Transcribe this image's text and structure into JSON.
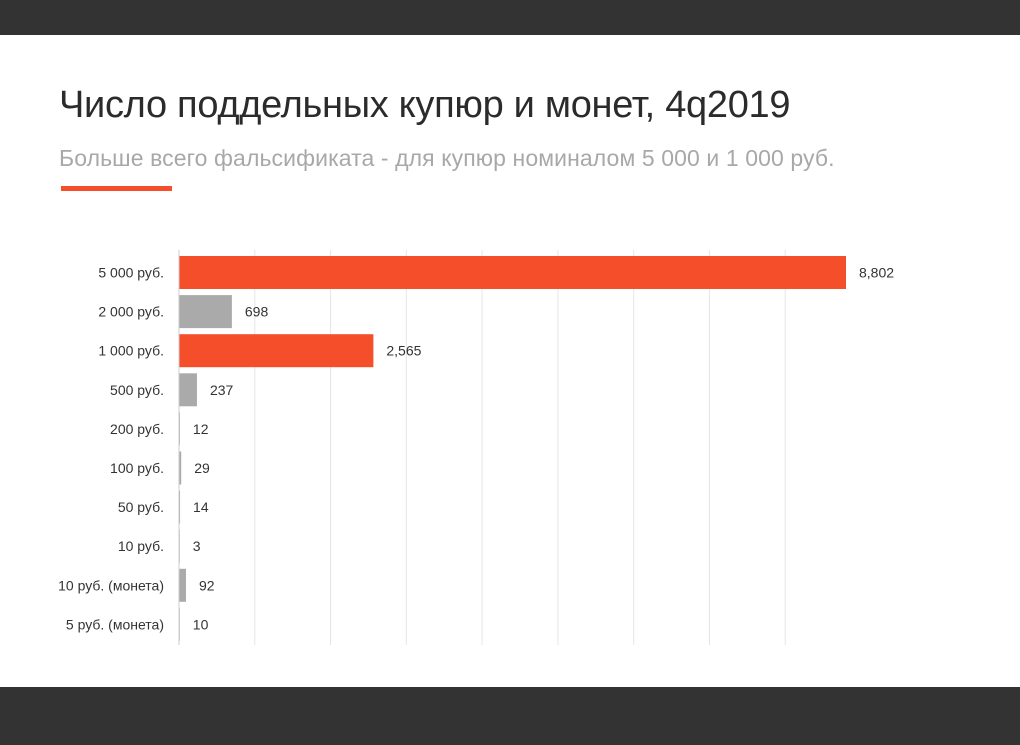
{
  "colors": {
    "highlight": "#f54e2b",
    "neutral": "#aaaaaa",
    "grid": "#e6e6e6",
    "bars_frame": "#333333"
  },
  "chart_data": {
    "type": "bar",
    "orientation": "horizontal",
    "title": "Число поддельных купюр и монет, 4q2019",
    "subtitle": "Больше всего фальсификата - для купюр номиналом 5 000 и 1 000 руб.",
    "categories": [
      "5 000 руб.",
      "2 000 руб.",
      "1 000 руб.",
      "500 руб.",
      "200 руб.",
      "100 руб.",
      "50 руб.",
      "10 руб.",
      "10 руб. (монета)",
      "5 руб. (монета)"
    ],
    "values": [
      8802,
      698,
      2565,
      237,
      12,
      29,
      14,
      3,
      92,
      10
    ],
    "value_labels": [
      "8,802",
      "698",
      "2,565",
      "237",
      "12",
      "29",
      "14",
      "3",
      "92",
      "10"
    ],
    "highlighted": [
      true,
      false,
      true,
      false,
      false,
      false,
      false,
      false,
      false,
      false
    ],
    "xlim": [
      0,
      9000
    ],
    "grid": true,
    "legend": "none"
  }
}
